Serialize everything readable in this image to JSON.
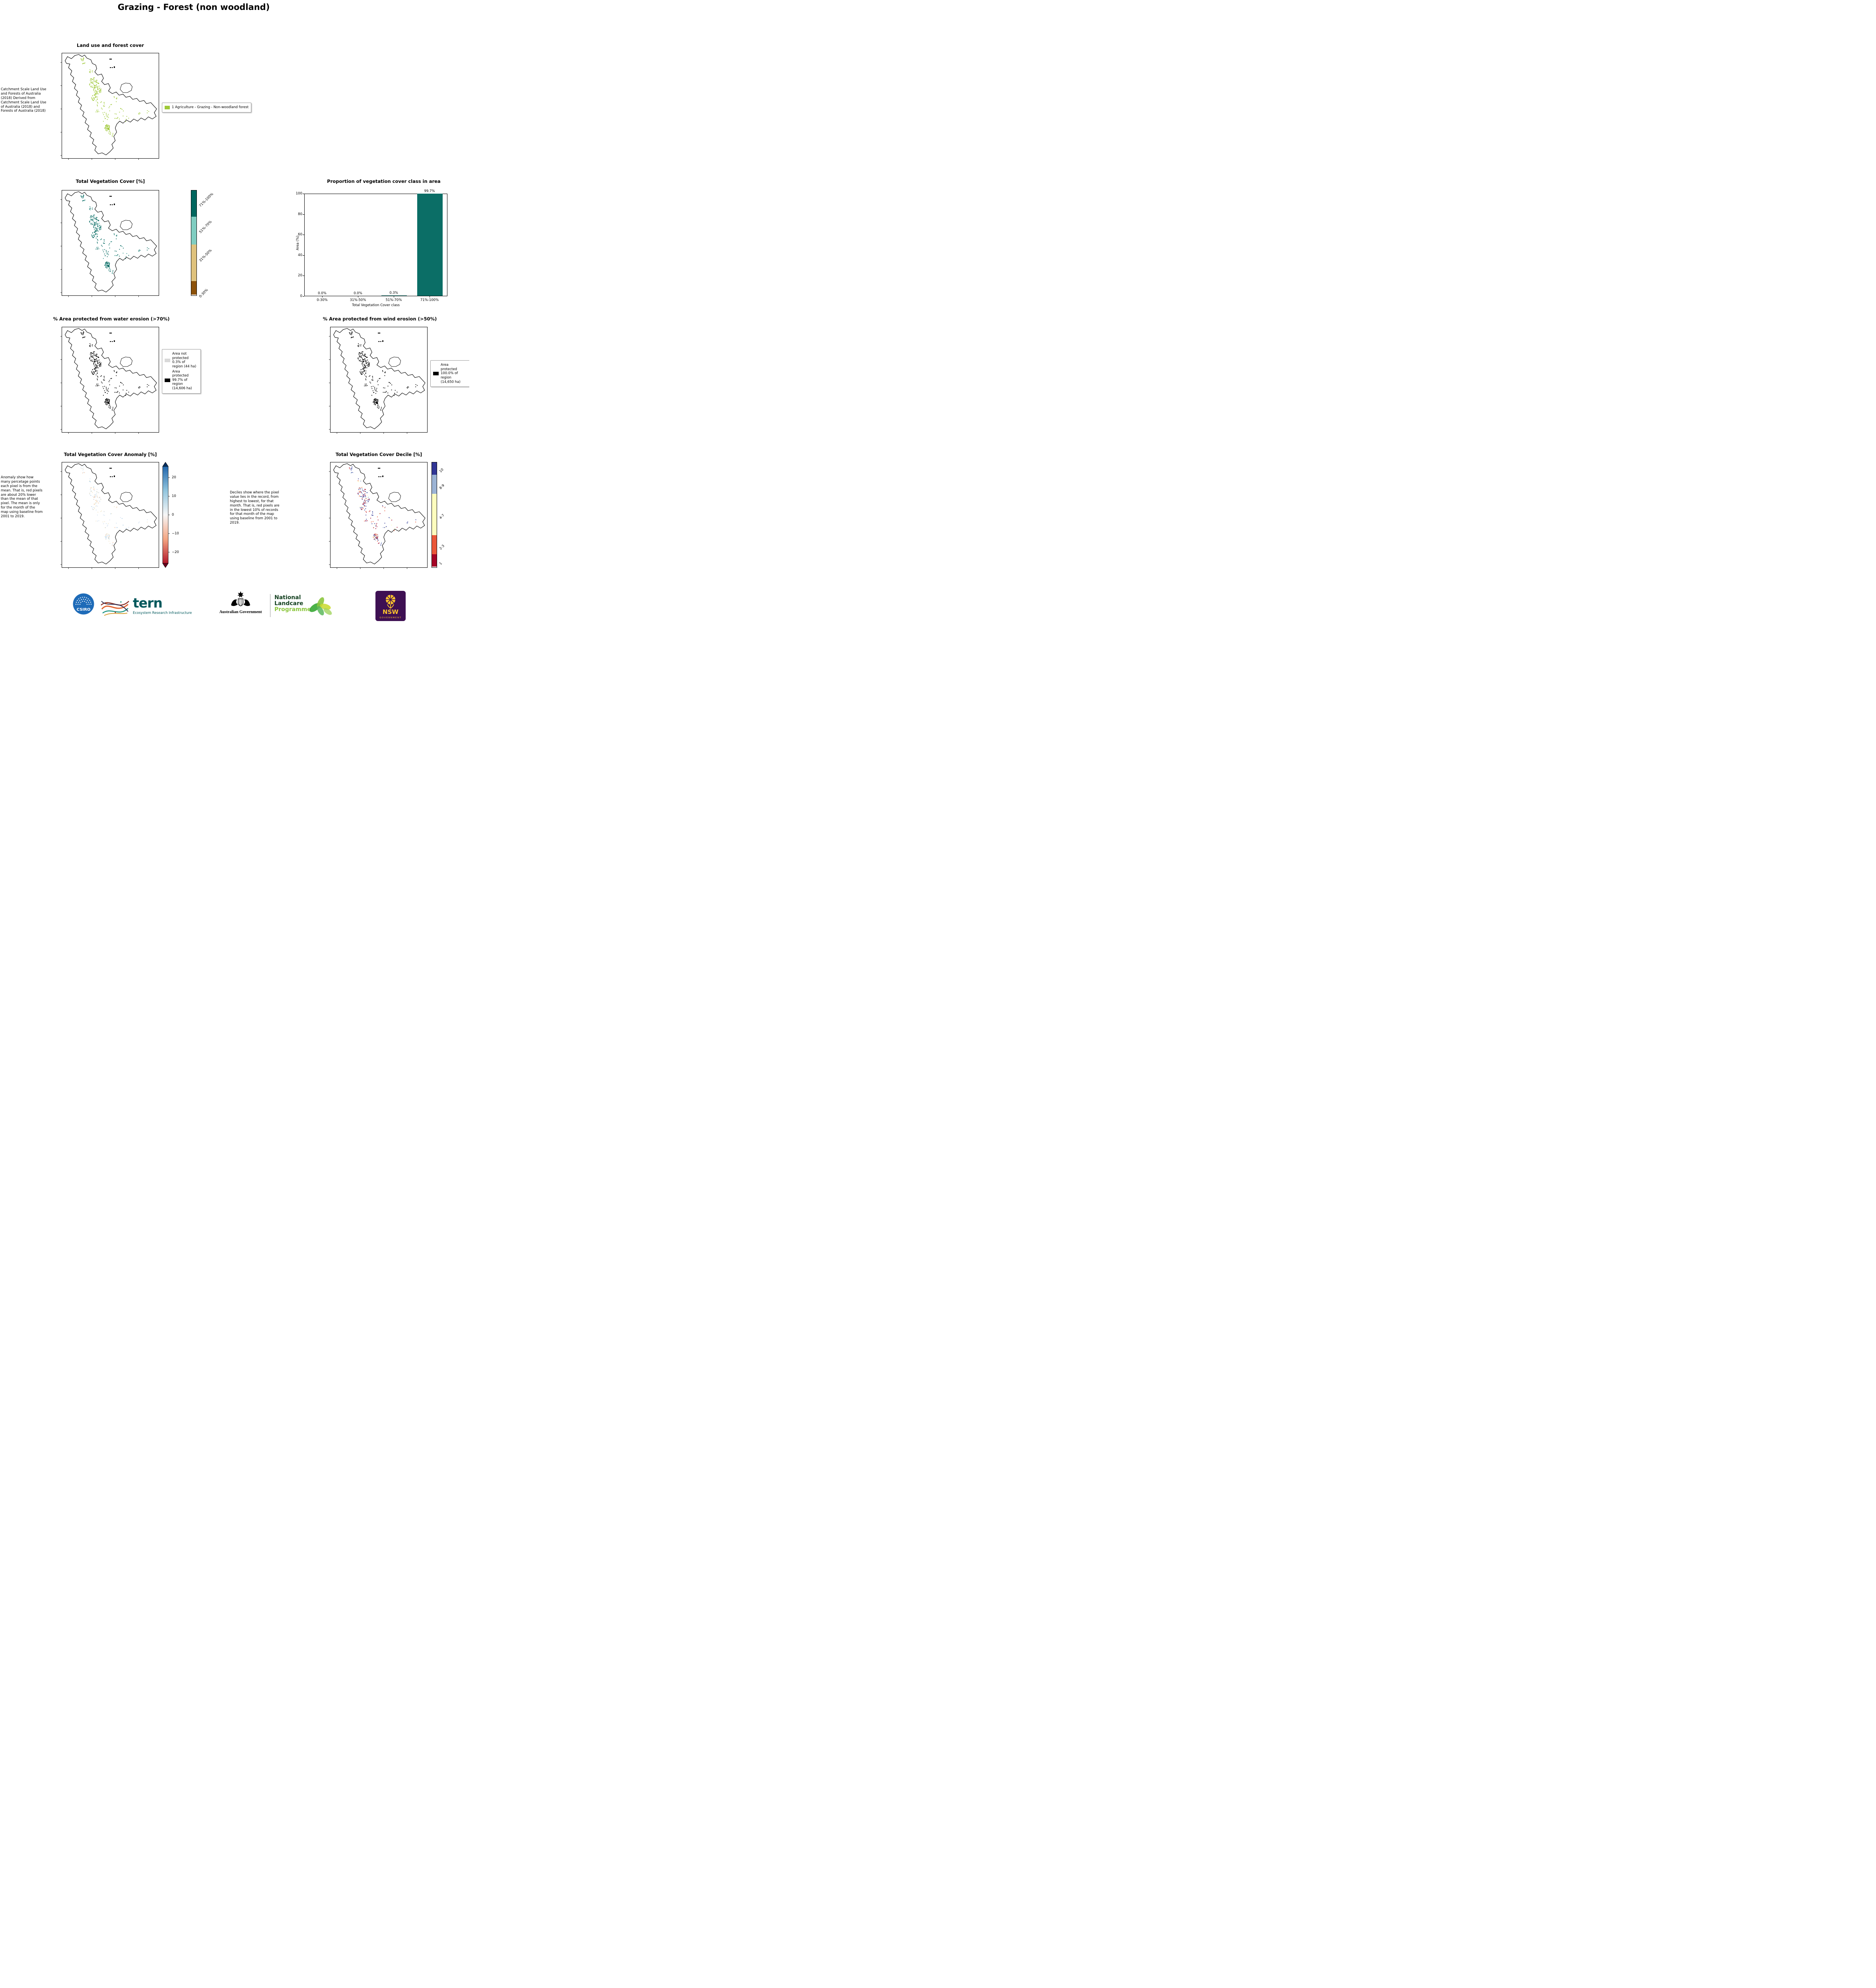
{
  "page": {
    "title": "Grazing - Forest (non woodland)"
  },
  "panels": {
    "landuse": {
      "title": "Land use and forest cover",
      "side_text": "Catchment Scale Land Use and Forests of Australia (2018) Derived from Catchment Scale Land Use of Australia (2018) and Forests of Australia (2018)",
      "legend": {
        "label": "1 Agriculture - Grazing - Non-woodland forest",
        "color": "#9fc938"
      },
      "dot_colors": [
        {
          "color": "#9fc938",
          "w": 1
        }
      ],
      "density": 1
    },
    "vegcover": {
      "title": "Total Vegetation Cover [%]",
      "colorbar": {
        "labels": [
          "71%-100%",
          "51%-70%",
          "31%-50%",
          "0-30%"
        ],
        "colors": [
          "#01665e",
          "#80cdc1",
          "#dfc27d",
          "#8c510a"
        ],
        "fractions": [
          0.25,
          0.27,
          0.35,
          0.13
        ]
      },
      "dot_colors": [
        {
          "color": "#01665e",
          "w": 0.8
        },
        {
          "color": "#35978f",
          "w": 0.2
        }
      ],
      "density": 1
    },
    "water": {
      "title": "% Area protected from water erosion (>70%)",
      "legend": [
        {
          "label": "Area not protected 0.3% of region (44 ha)",
          "color": "#d9d9d9"
        },
        {
          "label": "Area protected 99.7% of region (14,606 ha)",
          "color": "#000000"
        }
      ],
      "dot_colors": [
        {
          "color": "#000000",
          "w": 1
        }
      ],
      "density": 1
    },
    "wind": {
      "title": "% Area protected from wind erosion (>50%)",
      "legend": [
        {
          "label": "Area protected 100.0% of region (14,650 ha)",
          "color": "#000000"
        }
      ],
      "dot_colors": [
        {
          "color": "#000000",
          "w": 1
        }
      ],
      "density": 1
    },
    "anomaly": {
      "title": "Total Vegetation Cover Anomaly [%]",
      "side_text": "Anomaly show how many percetage points each pixel is from the mean. That is, red pixels are about 20% lower than the mean of that pixel. The mean is only for the month of the map using baseline from 2001 to 2019.",
      "colorbar": {
        "ticks": [
          "20",
          "10",
          "0",
          "−10",
          "−20"
        ],
        "top_color": "#2166ac",
        "upper_mid_color": "#92c5de",
        "mid_color": "#f7f7f7",
        "lower_mid_color": "#f4a582",
        "bottom_color": "#b2182b",
        "cap_top": "#053061",
        "cap_bottom": "#67001f"
      },
      "dot_colors": [
        {
          "color": "#cfe0f0",
          "w": 0.4
        },
        {
          "color": "#f2e6c9",
          "w": 0.3
        },
        {
          "color": "#f2c4a2",
          "w": 0.15
        },
        {
          "color": "#a8cbe4",
          "w": 0.15
        }
      ],
      "density": 0.55
    },
    "decile": {
      "title": "Total Vegetation Cover Decile [%]",
      "side_text": "Deciles show where the pixel value lies in the record, from highest to lowest, for that month. That is, red pixels are in the lowest 10% of records for that month of the map using baseline from 2001 to 2019.",
      "colorbar": {
        "labels": [
          "10",
          "8-9",
          "4-7",
          "2-3",
          "1"
        ],
        "colors": [
          "#313695",
          "#9bb3d4",
          "#fdfdbe",
          "#ea5739",
          "#a50426"
        ],
        "fractions": [
          0.12,
          0.18,
          0.4,
          0.18,
          0.12
        ]
      },
      "dot_colors": [
        {
          "color": "#313695",
          "w": 0.3
        },
        {
          "color": "#a50426",
          "w": 0.22
        },
        {
          "color": "#ea5739",
          "w": 0.15
        },
        {
          "color": "#8aa2cc",
          "w": 0.18
        },
        {
          "color": "#fdfdbe",
          "w": 0.15
        }
      ],
      "density": 0.8
    }
  },
  "chart_data": {
    "type": "bar",
    "title": "Proportion of vegetation cover class in area",
    "categories": [
      "0-30%",
      "31%-50%",
      "51%-70%",
      "71%-100%"
    ],
    "values": [
      0.0,
      0.0,
      0.3,
      99.7
    ],
    "value_labels": [
      "0.0%",
      "0.0%",
      "0.3%",
      "99.7%"
    ],
    "xlabel": "Total Vegetation Cover class",
    "ylabel": "Area (%)",
    "ylim": [
      0,
      100
    ],
    "yticks": [
      0,
      20,
      40,
      60,
      80,
      100
    ],
    "bar_color": "#0b6e66",
    "grid": false,
    "legend_position": "none"
  },
  "footer": {
    "csiro": "CSIRO",
    "tern": "tern",
    "tern_sub": "Ecosystem Research Infrastructure",
    "ausgov": "Australian Government",
    "landcare_1": "National",
    "landcare_2": "Landcare",
    "landcare_3": "Programme",
    "nsw": "NSW",
    "nsw_sub": "GOVERNMENT"
  }
}
